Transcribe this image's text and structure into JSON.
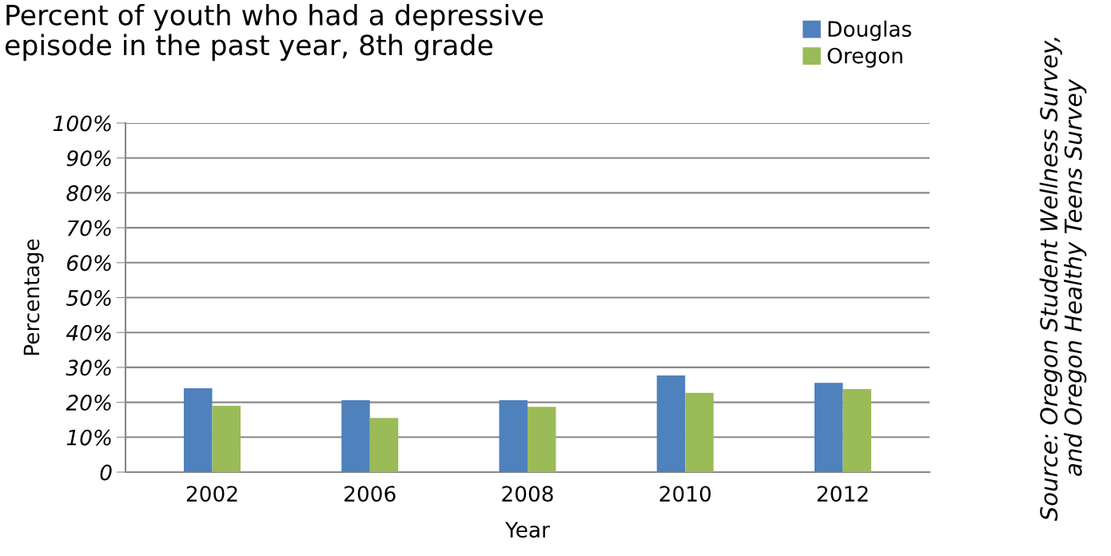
{
  "chart_data": {
    "type": "bar",
    "title": "Percent of youth who had a depressive\nepisode in the past year, 8th grade",
    "xlabel": "Year",
    "ylabel": "Percentage",
    "categories": [
      "2002",
      "2006",
      "2008",
      "2010",
      "2012"
    ],
    "series": [
      {
        "name": "Douglas",
        "color": "#4f81bd",
        "values": [
          24.0,
          20.6,
          20.6,
          27.7,
          25.6
        ]
      },
      {
        "name": "Oregon",
        "color": "#9bbb59",
        "values": [
          19.0,
          15.5,
          18.7,
          22.7,
          23.8
        ]
      }
    ],
    "ylim": [
      0,
      100
    ],
    "yticks": [
      {
        "value": 0,
        "label": "0"
      },
      {
        "value": 10,
        "label": "10%"
      },
      {
        "value": 20,
        "label": "20%"
      },
      {
        "value": 30,
        "label": "30%"
      },
      {
        "value": 40,
        "label": "40%"
      },
      {
        "value": 50,
        "label": "50%"
      },
      {
        "value": 60,
        "label": "60%"
      },
      {
        "value": 70,
        "label": "70%"
      },
      {
        "value": 80,
        "label": "80%"
      },
      {
        "value": 90,
        "label": "90%"
      },
      {
        "value": 100,
        "label": "100%"
      }
    ],
    "grid": "y",
    "legend": "top right",
    "annotations": [
      "Source: Oregon Student Wellness Survey,\nand Oregon Healthy Teens Survey"
    ]
  }
}
